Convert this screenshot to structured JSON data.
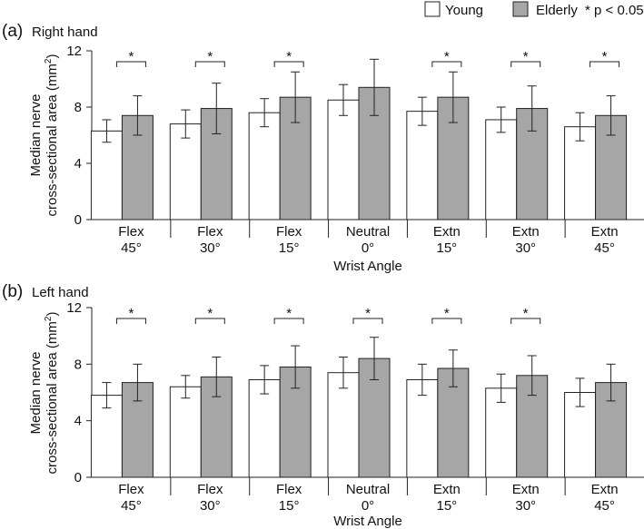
{
  "legend": {
    "items": [
      {
        "label": "Young",
        "color": "#ffffff"
      },
      {
        "label": "Elderly",
        "color": "#a6a6a6"
      }
    ],
    "significance_note": "* p < 0.05",
    "placement": "top-right"
  },
  "chart_data": [
    {
      "type": "bar",
      "panel_tag": "(a)",
      "title": "Right hand",
      "xlabel": "Wrist Angle",
      "ylabel_line1": "Median nerve",
      "ylabel_line2": "cross-sectional area (mm",
      "ylabel_sup": "2",
      "ylabel_close": ")",
      "ylim": [
        0,
        12
      ],
      "yticks": [
        0,
        4,
        8,
        12
      ],
      "categories": [
        [
          "Flex",
          "45°"
        ],
        [
          "Flex",
          "30°"
        ],
        [
          "Flex",
          "15°"
        ],
        [
          "Neutral",
          "0°"
        ],
        [
          "Extn",
          "15°"
        ],
        [
          "Extn",
          "30°"
        ],
        [
          "Extn",
          "45°"
        ]
      ],
      "series": [
        {
          "name": "Young",
          "values": [
            6.3,
            6.8,
            7.6,
            8.5,
            7.7,
            7.1,
            6.6
          ],
          "errors": [
            0.8,
            1.0,
            1.0,
            1.1,
            1.0,
            0.9,
            1.0
          ]
        },
        {
          "name": "Elderly",
          "values": [
            7.4,
            7.9,
            8.7,
            9.4,
            8.7,
            7.9,
            7.4
          ],
          "errors": [
            1.4,
            1.8,
            1.8,
            2.0,
            1.8,
            1.6,
            1.4
          ]
        }
      ],
      "significance": [
        "*",
        "*",
        "*",
        "",
        "*",
        "*",
        "*"
      ]
    },
    {
      "type": "bar",
      "panel_tag": "(b)",
      "title": "Left hand",
      "xlabel": "Wrist Angle",
      "ylabel_line1": "Median nerve",
      "ylabel_line2": "cross-sectional area (mm",
      "ylabel_sup": "2",
      "ylabel_close": ")",
      "ylim": [
        0,
        12
      ],
      "yticks": [
        0,
        4,
        8,
        12
      ],
      "categories": [
        [
          "Flex",
          "45°"
        ],
        [
          "Flex",
          "30°"
        ],
        [
          "Flex",
          "15°"
        ],
        [
          "Neutral",
          "0°"
        ],
        [
          "Extn",
          "15°"
        ],
        [
          "Extn",
          "30°"
        ],
        [
          "Extn",
          "45°"
        ]
      ],
      "series": [
        {
          "name": "Young",
          "values": [
            5.8,
            6.4,
            6.9,
            7.4,
            6.9,
            6.3,
            6.0
          ],
          "errors": [
            0.9,
            0.8,
            1.0,
            1.1,
            1.1,
            1.0,
            1.0
          ]
        },
        {
          "name": "Elderly",
          "values": [
            6.7,
            7.1,
            7.8,
            8.4,
            7.7,
            7.2,
            6.7
          ],
          "errors": [
            1.3,
            1.4,
            1.5,
            1.5,
            1.3,
            1.4,
            1.3
          ]
        }
      ],
      "significance": [
        "*",
        "*",
        "*",
        "*",
        "*",
        "*",
        ""
      ]
    }
  ]
}
